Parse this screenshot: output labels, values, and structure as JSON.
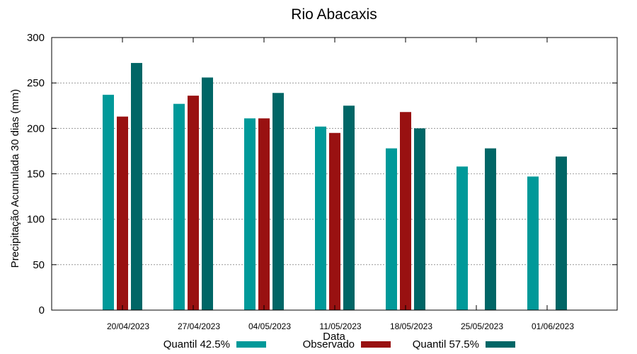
{
  "chart_data": {
    "type": "bar",
    "title": "Rio Abacaxis",
    "xlabel": "Data",
    "ylabel": "Precipitação Acumulada 30 dias (mm)",
    "ylim": [
      0,
      300
    ],
    "yticks": [
      0,
      50,
      100,
      150,
      200,
      250,
      300
    ],
    "categories": [
      "20/04/2023",
      "27/04/2023",
      "04/05/2023",
      "11/05/2023",
      "18/05/2023",
      "25/05/2023",
      "01/06/2023"
    ],
    "grid": true,
    "legend_position": "bottom",
    "series": [
      {
        "name": "Quantil 42.5%",
        "color": "#009999",
        "values": [
          237,
          227,
          211,
          202,
          178,
          158,
          147
        ]
      },
      {
        "name": "Observado",
        "color": "#991111",
        "values": [
          213,
          236,
          211,
          195,
          218,
          null,
          null
        ]
      },
      {
        "name": "Quantil 57.5%",
        "color": "#006666",
        "values": [
          272,
          256,
          239,
          225,
          200,
          178,
          169
        ]
      }
    ]
  }
}
